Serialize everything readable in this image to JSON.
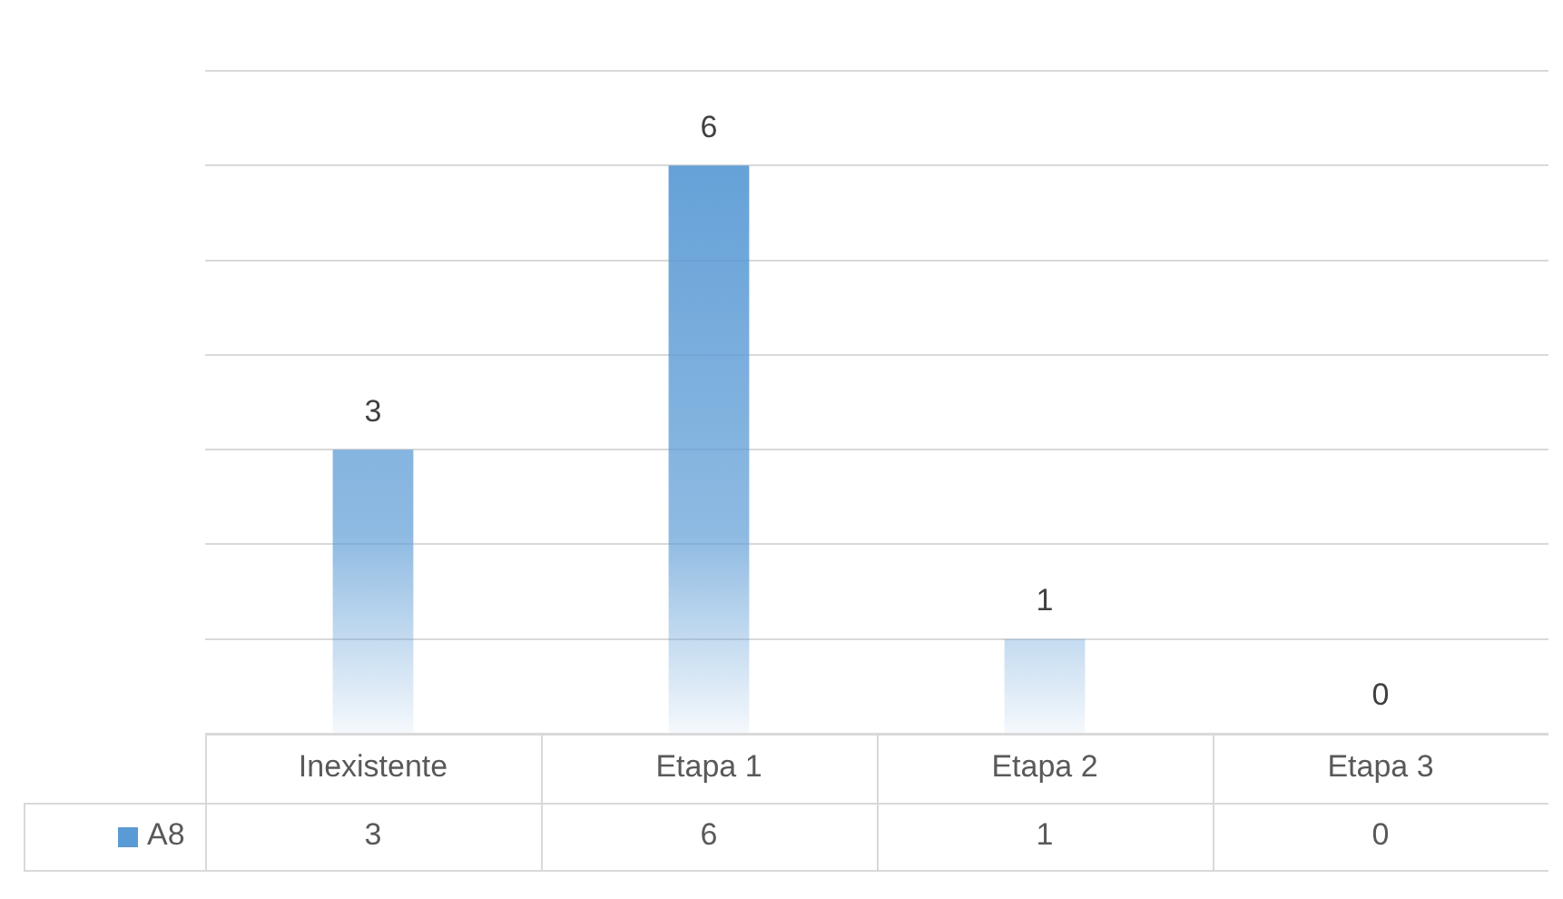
{
  "chart_data": {
    "type": "bar",
    "categories": [
      "Inexistente",
      "Etapa 1",
      "Etapa 2",
      "Etapa 3"
    ],
    "series": [
      {
        "name": "A8",
        "color": "#5b9bd5",
        "values": [
          3,
          6,
          1,
          0
        ]
      }
    ],
    "ylim": [
      0,
      7
    ],
    "yticks": [
      {
        "value": 0,
        "label": null
      },
      {
        "value": 1,
        "label": null
      },
      {
        "value": 2,
        "label": null
      },
      {
        "value": 3,
        "label": null
      },
      {
        "value": 4,
        "label": null
      },
      {
        "value": 5,
        "label": null
      },
      {
        "value": 6,
        "label": null
      },
      {
        "value": 7,
        "label": null
      }
    ],
    "annotations": [
      "3",
      "6",
      "1",
      "0"
    ],
    "grid": "y",
    "tick_labels": "x",
    "data_labels": true,
    "legend": "bottom"
  }
}
